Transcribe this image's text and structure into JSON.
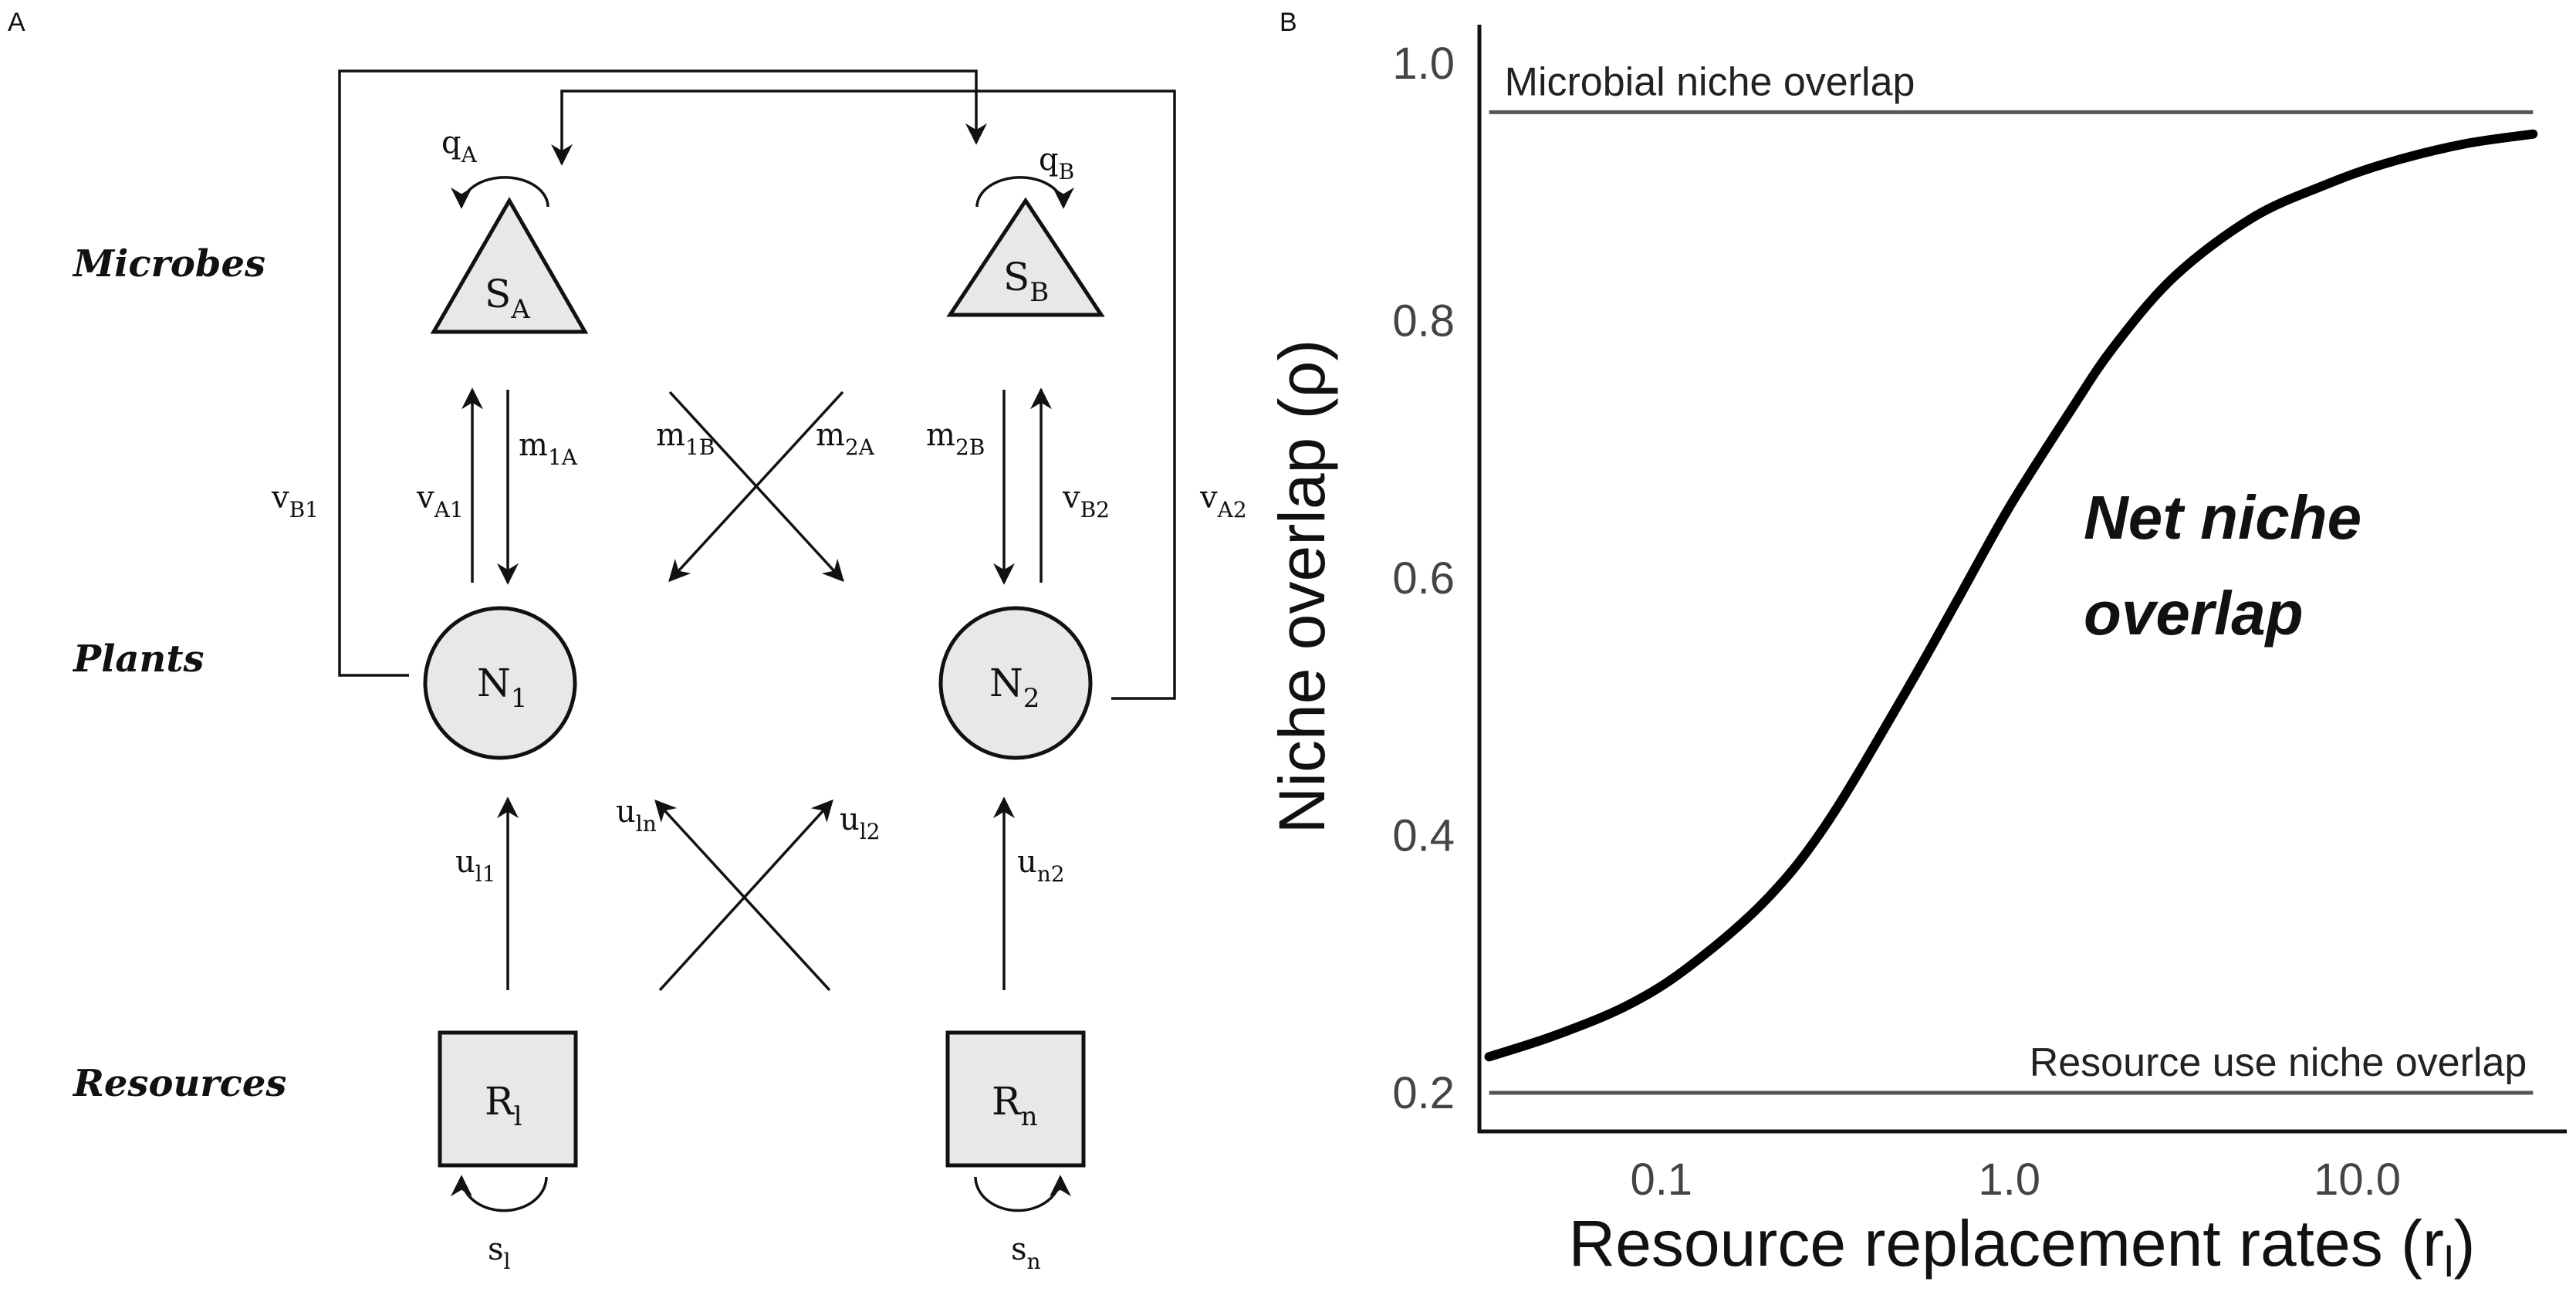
{
  "panel_a": {
    "label": "A",
    "rows": {
      "microbes": "Microbes",
      "plants": "Plants",
      "resources": "Resources"
    },
    "nodes": {
      "sa": {
        "main": "S",
        "sub": "A"
      },
      "sb": {
        "main": "S",
        "sub": "B"
      },
      "n1": {
        "main": "N",
        "sub": "1"
      },
      "n2": {
        "main": "N",
        "sub": "2"
      },
      "rl": {
        "main": "R",
        "sub": "l"
      },
      "rn": {
        "main": "R",
        "sub": "n"
      }
    },
    "edges": {
      "qa": {
        "main": "q",
        "sub": "A"
      },
      "qb": {
        "main": "q",
        "sub": "B"
      },
      "va1": {
        "main": "v",
        "sub": "A1"
      },
      "m1a": {
        "main": "m",
        "sub": "1A"
      },
      "m1b": {
        "main": "m",
        "sub": "1B"
      },
      "m2a": {
        "main": "m",
        "sub": "2A"
      },
      "m2b": {
        "main": "m",
        "sub": "2B"
      },
      "vb2": {
        "main": "v",
        "sub": "B2"
      },
      "vb1": {
        "main": "v",
        "sub": "B1"
      },
      "va2": {
        "main": "v",
        "sub": "A2"
      },
      "ul1": {
        "main": "u",
        "sub": "l1"
      },
      "uln": {
        "main": "u",
        "sub": "ln"
      },
      "ul2": {
        "main": "u",
        "sub": "l2"
      },
      "un2": {
        "main": "u",
        "sub": "n2"
      },
      "sl": {
        "main": "s",
        "sub": "l"
      },
      "sn": {
        "main": "s",
        "sub": "n"
      }
    }
  },
  "panel_b": {
    "label": "B",
    "chart_data": {
      "type": "line",
      "xlabel": "Resource replacement rates (r",
      "xlabel_sub": "l",
      "xlabel_end": ")",
      "ylabel": "Niche overlap (ρ)",
      "x_scale": "log",
      "xlim": [
        0.03,
        40
      ],
      "ylim": [
        0.17,
        1.03
      ],
      "x_ticks": [
        0.1,
        1.0,
        10.0
      ],
      "x_tick_labels": [
        "0.1",
        "1.0",
        "10.0"
      ],
      "y_ticks": [
        0.2,
        0.4,
        0.6,
        0.8,
        1.0
      ],
      "y_tick_labels": [
        "0.2",
        "0.4",
        "0.6",
        "0.8",
        "1.0"
      ],
      "grid": false,
      "reference_lines": [
        {
          "label": "Microbial niche overlap",
          "y": 0.962,
          "color": "#555555"
        },
        {
          "label": "Resource use niche overlap",
          "y": 0.2,
          "color": "#555555"
        }
      ],
      "series": [
        {
          "annotation_line1": "Net niche",
          "annotation_line2": "overlap",
          "color": "#000000",
          "x": [
            0.032,
            0.05,
            0.08,
            0.12,
            0.2,
            0.3,
            0.5,
            0.7,
            1.0,
            1.5,
            2.0,
            3.0,
            5.0,
            8.0,
            12.0,
            20.0,
            32.0
          ],
          "y": [
            0.228,
            0.245,
            0.268,
            0.298,
            0.35,
            0.41,
            0.51,
            0.58,
            0.655,
            0.73,
            0.78,
            0.835,
            0.88,
            0.905,
            0.922,
            0.937,
            0.945
          ]
        }
      ]
    }
  }
}
